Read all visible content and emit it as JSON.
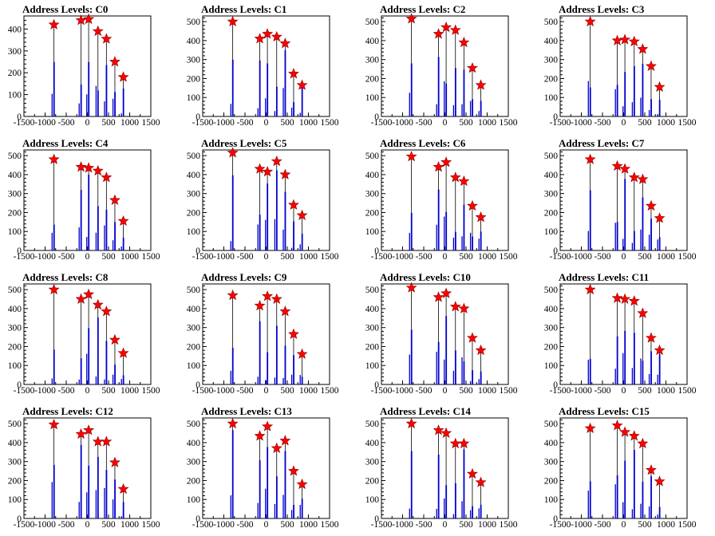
{
  "marker_color": "#ff0000",
  "bar_color": "#0000cc",
  "chart_data": [
    {
      "type": "bar",
      "title": "Address Levels: C0",
      "xlim": [
        -1500,
        1500
      ],
      "ylim": [
        0,
        460
      ],
      "xticks": [
        -1500,
        -1000,
        -500,
        0,
        500,
        1000,
        1500
      ],
      "yticks": [
        0,
        100,
        200,
        300,
        400
      ],
      "peaks": [
        {
          "x": -790,
          "y": 420
        },
        {
          "x": -150,
          "y": 440
        },
        {
          "x": 30,
          "y": 445
        },
        {
          "x": 250,
          "y": 390
        },
        {
          "x": 450,
          "y": 355
        },
        {
          "x": 650,
          "y": 250
        },
        {
          "x": 850,
          "y": 180
        }
      ]
    },
    {
      "type": "bar",
      "title": "Address Levels: C1",
      "xlim": [
        -1500,
        1500
      ],
      "ylim": [
        0,
        530
      ],
      "xticks": [
        -1500,
        -1000,
        -500,
        0,
        500,
        1000,
        1500
      ],
      "yticks": [
        0,
        100,
        200,
        300,
        400,
        500
      ],
      "peaks": [
        {
          "x": -790,
          "y": 500
        },
        {
          "x": -150,
          "y": 410
        },
        {
          "x": 30,
          "y": 435
        },
        {
          "x": 250,
          "y": 420
        },
        {
          "x": 450,
          "y": 385
        },
        {
          "x": 650,
          "y": 225
        },
        {
          "x": 850,
          "y": 165
        }
      ]
    },
    {
      "type": "bar",
      "title": "Address Levels: C2",
      "xlim": [
        -1500,
        1500
      ],
      "ylim": [
        0,
        530
      ],
      "xticks": [
        -1500,
        -1000,
        -500,
        0,
        500,
        1000,
        1500
      ],
      "yticks": [
        0,
        100,
        200,
        300,
        400,
        500
      ],
      "peaks": [
        {
          "x": -790,
          "y": 515
        },
        {
          "x": -150,
          "y": 435
        },
        {
          "x": 30,
          "y": 470
        },
        {
          "x": 250,
          "y": 455
        },
        {
          "x": 450,
          "y": 390
        },
        {
          "x": 650,
          "y": 255
        },
        {
          "x": 850,
          "y": 165
        }
      ]
    },
    {
      "type": "bar",
      "title": "Address Levels: C3",
      "xlim": [
        -1500,
        1500
      ],
      "ylim": [
        0,
        530
      ],
      "xticks": [
        -1500,
        -1000,
        -500,
        0,
        500,
        1000,
        1500
      ],
      "yticks": [
        0,
        100,
        200,
        300,
        400,
        500
      ],
      "peaks": [
        {
          "x": -790,
          "y": 500
        },
        {
          "x": -150,
          "y": 400
        },
        {
          "x": 30,
          "y": 405
        },
        {
          "x": 250,
          "y": 395
        },
        {
          "x": 450,
          "y": 355
        },
        {
          "x": 650,
          "y": 265
        },
        {
          "x": 850,
          "y": 155
        }
      ]
    },
    {
      "type": "bar",
      "title": "Address Levels: C4",
      "xlim": [
        -1500,
        1500
      ],
      "ylim": [
        0,
        530
      ],
      "xticks": [
        -1500,
        -1000,
        -500,
        0,
        500,
        1000,
        1500
      ],
      "yticks": [
        0,
        100,
        200,
        300,
        400,
        500
      ],
      "peaks": [
        {
          "x": -790,
          "y": 480
        },
        {
          "x": -150,
          "y": 440
        },
        {
          "x": 30,
          "y": 435
        },
        {
          "x": 250,
          "y": 420
        },
        {
          "x": 450,
          "y": 385
        },
        {
          "x": 650,
          "y": 265
        },
        {
          "x": 850,
          "y": 155
        }
      ]
    },
    {
      "type": "bar",
      "title": "Address Levels: C5",
      "xlim": [
        -1500,
        1500
      ],
      "ylim": [
        0,
        530
      ],
      "xticks": [
        -1500,
        -1000,
        -500,
        0,
        500,
        1000,
        1500
      ],
      "yticks": [
        0,
        100,
        200,
        300,
        400,
        500
      ],
      "peaks": [
        {
          "x": -790,
          "y": 515
        },
        {
          "x": -150,
          "y": 430
        },
        {
          "x": 30,
          "y": 415
        },
        {
          "x": 250,
          "y": 470
        },
        {
          "x": 450,
          "y": 400
        },
        {
          "x": 650,
          "y": 240
        },
        {
          "x": 850,
          "y": 185
        }
      ]
    },
    {
      "type": "bar",
      "title": "Address Levels: C6",
      "xlim": [
        -1500,
        1500
      ],
      "ylim": [
        0,
        530
      ],
      "xticks": [
        -1500,
        -1000,
        -500,
        0,
        500,
        1000,
        1500
      ],
      "yticks": [
        0,
        100,
        200,
        300,
        400,
        500
      ],
      "peaks": [
        {
          "x": -790,
          "y": 495
        },
        {
          "x": -150,
          "y": 440
        },
        {
          "x": 30,
          "y": 465
        },
        {
          "x": 250,
          "y": 385
        },
        {
          "x": 450,
          "y": 365
        },
        {
          "x": 650,
          "y": 235
        },
        {
          "x": 850,
          "y": 175
        }
      ]
    },
    {
      "type": "bar",
      "title": "Address Levels: C7",
      "xlim": [
        -1500,
        1500
      ],
      "ylim": [
        0,
        530
      ],
      "xticks": [
        -1500,
        -1000,
        -500,
        0,
        500,
        1000,
        1500
      ],
      "yticks": [
        0,
        100,
        200,
        300,
        400,
        500
      ],
      "peaks": [
        {
          "x": -790,
          "y": 480
        },
        {
          "x": -150,
          "y": 445
        },
        {
          "x": 30,
          "y": 430
        },
        {
          "x": 250,
          "y": 385
        },
        {
          "x": 450,
          "y": 375
        },
        {
          "x": 650,
          "y": 235
        },
        {
          "x": 850,
          "y": 170
        }
      ]
    },
    {
      "type": "bar",
      "title": "Address Levels: C8",
      "xlim": [
        -1500,
        1500
      ],
      "ylim": [
        0,
        530
      ],
      "xticks": [
        -1500,
        -1000,
        -500,
        0,
        500,
        1000,
        1500
      ],
      "yticks": [
        0,
        100,
        200,
        300,
        400,
        500
      ],
      "peaks": [
        {
          "x": -790,
          "y": 500
        },
        {
          "x": -150,
          "y": 450
        },
        {
          "x": 30,
          "y": 475
        },
        {
          "x": 250,
          "y": 420
        },
        {
          "x": 450,
          "y": 385
        },
        {
          "x": 650,
          "y": 235
        },
        {
          "x": 850,
          "y": 165
        }
      ]
    },
    {
      "type": "bar",
      "title": "Address Levels: C9",
      "xlim": [
        -1500,
        1500
      ],
      "ylim": [
        0,
        530
      ],
      "xticks": [
        -1500,
        -1000,
        -500,
        0,
        500,
        1000,
        1500
      ],
      "yticks": [
        0,
        100,
        200,
        300,
        400,
        500
      ],
      "peaks": [
        {
          "x": -790,
          "y": 470
        },
        {
          "x": -150,
          "y": 415
        },
        {
          "x": 30,
          "y": 465
        },
        {
          "x": 250,
          "y": 450
        },
        {
          "x": 450,
          "y": 385
        },
        {
          "x": 650,
          "y": 265
        },
        {
          "x": 850,
          "y": 160
        }
      ]
    },
    {
      "type": "bar",
      "title": "Address Levels: C10",
      "xlim": [
        -1500,
        1500
      ],
      "ylim": [
        0,
        530
      ],
      "xticks": [
        -1500,
        -1000,
        -500,
        0,
        500,
        1000,
        1500
      ],
      "yticks": [
        0,
        100,
        200,
        300,
        400,
        500
      ],
      "peaks": [
        {
          "x": -790,
          "y": 510
        },
        {
          "x": -150,
          "y": 460
        },
        {
          "x": 30,
          "y": 480
        },
        {
          "x": 250,
          "y": 410
        },
        {
          "x": 450,
          "y": 400
        },
        {
          "x": 650,
          "y": 245
        },
        {
          "x": 850,
          "y": 180
        }
      ]
    },
    {
      "type": "bar",
      "title": "Address Levels: C11",
      "xlim": [
        -1500,
        1500
      ],
      "ylim": [
        0,
        530
      ],
      "xticks": [
        -1500,
        -1000,
        -500,
        0,
        500,
        1000,
        1500
      ],
      "yticks": [
        0,
        100,
        200,
        300,
        400,
        500
      ],
      "peaks": [
        {
          "x": -790,
          "y": 500
        },
        {
          "x": -150,
          "y": 455
        },
        {
          "x": 30,
          "y": 450
        },
        {
          "x": 250,
          "y": 440
        },
        {
          "x": 450,
          "y": 375
        },
        {
          "x": 650,
          "y": 245
        },
        {
          "x": 850,
          "y": 180
        }
      ]
    },
    {
      "type": "bar",
      "title": "Address Levels: C12",
      "xlim": [
        -1500,
        1500
      ],
      "ylim": [
        0,
        530
      ],
      "xticks": [
        -1500,
        -1000,
        -500,
        0,
        500,
        1000,
        1500
      ],
      "yticks": [
        0,
        100,
        200,
        300,
        400,
        500
      ],
      "peaks": [
        {
          "x": -790,
          "y": 495
        },
        {
          "x": -150,
          "y": 445
        },
        {
          "x": 30,
          "y": 465
        },
        {
          "x": 250,
          "y": 405
        },
        {
          "x": 450,
          "y": 405
        },
        {
          "x": 650,
          "y": 295
        },
        {
          "x": 850,
          "y": 155
        }
      ]
    },
    {
      "type": "bar",
      "title": "Address Levels: C13",
      "xlim": [
        -1500,
        1500
      ],
      "ylim": [
        0,
        530
      ],
      "xticks": [
        -1500,
        -1000,
        -500,
        0,
        500,
        1000,
        1500
      ],
      "yticks": [
        0,
        100,
        200,
        300,
        400,
        500
      ],
      "peaks": [
        {
          "x": -790,
          "y": 500
        },
        {
          "x": -150,
          "y": 435
        },
        {
          "x": 30,
          "y": 485
        },
        {
          "x": 250,
          "y": 370
        },
        {
          "x": 450,
          "y": 410
        },
        {
          "x": 650,
          "y": 250
        },
        {
          "x": 850,
          "y": 180
        }
      ]
    },
    {
      "type": "bar",
      "title": "Address Levels: C14",
      "xlim": [
        -1500,
        1500
      ],
      "ylim": [
        0,
        530
      ],
      "xticks": [
        -1500,
        -1000,
        -500,
        0,
        500,
        1000,
        1500
      ],
      "yticks": [
        0,
        100,
        200,
        300,
        400,
        500
      ],
      "peaks": [
        {
          "x": -790,
          "y": 500
        },
        {
          "x": -150,
          "y": 465
        },
        {
          "x": 30,
          "y": 450
        },
        {
          "x": 250,
          "y": 395
        },
        {
          "x": 450,
          "y": 395
        },
        {
          "x": 650,
          "y": 235
        },
        {
          "x": 850,
          "y": 190
        }
      ]
    },
    {
      "type": "bar",
      "title": "Address Levels: C15",
      "xlim": [
        -1500,
        1500
      ],
      "ylim": [
        0,
        530
      ],
      "xticks": [
        -1500,
        -1000,
        -500,
        0,
        500,
        1000,
        1500
      ],
      "yticks": [
        0,
        100,
        200,
        300,
        400,
        500
      ],
      "peaks": [
        {
          "x": -790,
          "y": 475
        },
        {
          "x": -150,
          "y": 490
        },
        {
          "x": 30,
          "y": 455
        },
        {
          "x": 250,
          "y": 435
        },
        {
          "x": 450,
          "y": 395
        },
        {
          "x": 650,
          "y": 255
        },
        {
          "x": 850,
          "y": 195
        }
      ]
    }
  ]
}
